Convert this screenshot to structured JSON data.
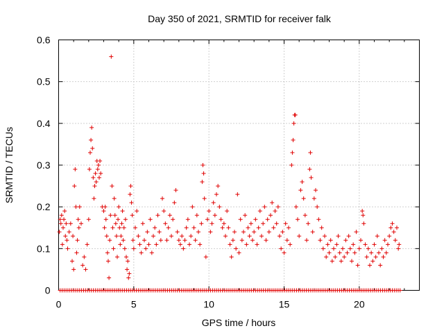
{
  "chart_data": {
    "type": "scatter",
    "title": "Day 350 of 2021, SRMTID for receiver falk",
    "xlabel": "GPS time / hours",
    "ylabel": "SRMTID / TECUs",
    "xlim": [
      0,
      24
    ],
    "ylim": [
      0,
      0.6
    ],
    "x_ticks": [
      "0",
      "5",
      "10",
      "15",
      "20"
    ],
    "y_ticks": [
      "0",
      "0.1",
      "0.2",
      "0.3",
      "0.4",
      "0.5",
      "0.6"
    ],
    "grid": true,
    "marker": "plus",
    "color": "#e00000",
    "series": [
      {
        "name": "SRMTID",
        "points": [
          [
            0.05,
            0.14
          ],
          [
            0.1,
            0.17
          ],
          [
            0.15,
            0.16
          ],
          [
            0.2,
            0.18
          ],
          [
            0.25,
            0.11
          ],
          [
            0.3,
            0.15
          ],
          [
            0.35,
            0.17
          ],
          [
            0.4,
            0.19
          ],
          [
            0.45,
            0.13
          ],
          [
            0.5,
            0.16
          ],
          [
            0.55,
            0.12
          ],
          [
            0.6,
            0.1
          ],
          [
            0.7,
            0.14
          ],
          [
            0.8,
            0.16
          ],
          [
            0.9,
            0.07
          ],
          [
            0.95,
            0.13
          ],
          [
            1.0,
            0.05
          ],
          [
            1.05,
            0.25
          ],
          [
            1.1,
            0.29
          ],
          [
            1.15,
            0.2
          ],
          [
            1.2,
            0.09
          ],
          [
            1.25,
            0.12
          ],
          [
            1.3,
            0.17
          ],
          [
            1.35,
            0.15
          ],
          [
            1.4,
            0.2
          ],
          [
            1.5,
            0.16
          ],
          [
            1.6,
            0.06
          ],
          [
            1.7,
            0.08
          ],
          [
            1.8,
            0.05
          ],
          [
            1.9,
            0.11
          ],
          [
            2.0,
            0.17
          ],
          [
            2.05,
            0.29
          ],
          [
            2.1,
            0.33
          ],
          [
            2.15,
            0.36
          ],
          [
            2.2,
            0.39
          ],
          [
            2.25,
            0.34
          ],
          [
            2.3,
            0.27
          ],
          [
            2.35,
            0.22
          ],
          [
            2.4,
            0.25
          ],
          [
            2.45,
            0.28
          ],
          [
            2.5,
            0.26
          ],
          [
            2.55,
            0.31
          ],
          [
            2.6,
            0.29
          ],
          [
            2.65,
            0.3
          ],
          [
            2.7,
            0.27
          ],
          [
            2.75,
            0.31
          ],
          [
            2.8,
            0.28
          ],
          [
            2.9,
            0.2
          ],
          [
            3.0,
            0.19
          ],
          [
            3.05,
            0.15
          ],
          [
            3.1,
            0.2
          ],
          [
            3.15,
            0.17
          ],
          [
            3.2,
            0.13
          ],
          [
            3.25,
            0.09
          ],
          [
            3.3,
            0.07
          ],
          [
            3.35,
            0.03
          ],
          [
            3.4,
            0.12
          ],
          [
            3.45,
            0.18
          ],
          [
            3.5,
            0.56
          ],
          [
            3.55,
            0.25
          ],
          [
            3.6,
            0.15
          ],
          [
            3.65,
            0.1
          ],
          [
            3.7,
            0.22
          ],
          [
            3.75,
            0.18
          ],
          [
            3.8,
            0.16
          ],
          [
            3.85,
            0.13
          ],
          [
            3.9,
            0.08
          ],
          [
            3.95,
            0.17
          ],
          [
            4.0,
            0.2
          ],
          [
            4.05,
            0.15
          ],
          [
            4.1,
            0.11
          ],
          [
            4.15,
            0.13
          ],
          [
            4.2,
            0.16
          ],
          [
            4.25,
            0.19
          ],
          [
            4.3,
            0.12
          ],
          [
            4.35,
            0.15
          ],
          [
            4.4,
            0.1
          ],
          [
            4.45,
            0.17
          ],
          [
            4.5,
            0.08
          ],
          [
            4.55,
            0.05
          ],
          [
            4.6,
            0.07
          ],
          [
            4.65,
            0.03
          ],
          [
            4.7,
            0.04
          ],
          [
            4.75,
            0.23
          ],
          [
            4.8,
            0.25
          ],
          [
            4.85,
            0.21
          ],
          [
            4.9,
            0.18
          ],
          [
            4.95,
            0.12
          ],
          [
            5.0,
            0.1
          ],
          [
            5.1,
            0.15
          ],
          [
            5.2,
            0.19
          ],
          [
            5.3,
            0.13
          ],
          [
            5.4,
            0.11
          ],
          [
            5.5,
            0.09
          ],
          [
            5.6,
            0.16
          ],
          [
            5.7,
            0.12
          ],
          [
            5.8,
            0.1
          ],
          [
            5.9,
            0.14
          ],
          [
            6.0,
            0.11
          ],
          [
            6.1,
            0.17
          ],
          [
            6.2,
            0.09
          ],
          [
            6.3,
            0.13
          ],
          [
            6.4,
            0.15
          ],
          [
            6.5,
            0.11
          ],
          [
            6.6,
            0.18
          ],
          [
            6.7,
            0.14
          ],
          [
            6.8,
            0.12
          ],
          [
            6.9,
            0.22
          ],
          [
            7.0,
            0.19
          ],
          [
            7.1,
            0.16
          ],
          [
            7.2,
            0.12
          ],
          [
            7.3,
            0.15
          ],
          [
            7.4,
            0.18
          ],
          [
            7.5,
            0.13
          ],
          [
            7.6,
            0.17
          ],
          [
            7.7,
            0.21
          ],
          [
            7.8,
            0.24
          ],
          [
            7.9,
            0.14
          ],
          [
            8.0,
            0.12
          ],
          [
            8.1,
            0.11
          ],
          [
            8.2,
            0.13
          ],
          [
            8.3,
            0.1
          ],
          [
            8.4,
            0.12
          ],
          [
            8.5,
            0.15
          ],
          [
            8.6,
            0.17
          ],
          [
            8.7,
            0.11
          ],
          [
            8.8,
            0.13
          ],
          [
            8.9,
            0.2
          ],
          [
            9.0,
            0.15
          ],
          [
            9.1,
            0.12
          ],
          [
            9.2,
            0.18
          ],
          [
            9.3,
            0.14
          ],
          [
            9.4,
            0.11
          ],
          [
            9.5,
            0.16
          ],
          [
            9.55,
            0.26
          ],
          [
            9.6,
            0.3
          ],
          [
            9.65,
            0.28
          ],
          [
            9.7,
            0.22
          ],
          [
            9.8,
            0.08
          ],
          [
            9.9,
            0.17
          ],
          [
            10.0,
            0.19
          ],
          [
            10.1,
            0.14
          ],
          [
            10.2,
            0.16
          ],
          [
            10.3,
            0.21
          ],
          [
            10.4,
            0.18
          ],
          [
            10.5,
            0.23
          ],
          [
            10.6,
            0.25
          ],
          [
            10.7,
            0.2
          ],
          [
            10.8,
            0.17
          ],
          [
            10.9,
            0.15
          ],
          [
            11.0,
            0.16
          ],
          [
            11.1,
            0.13
          ],
          [
            11.2,
            0.19
          ],
          [
            11.3,
            0.15
          ],
          [
            11.4,
            0.11
          ],
          [
            11.5,
            0.08
          ],
          [
            11.6,
            0.12
          ],
          [
            11.7,
            0.14
          ],
          [
            11.8,
            0.1
          ],
          [
            11.9,
            0.23
          ],
          [
            12.0,
            0.09
          ],
          [
            12.1,
            0.17
          ],
          [
            12.2,
            0.12
          ],
          [
            12.3,
            0.14
          ],
          [
            12.4,
            0.18
          ],
          [
            12.5,
            0.11
          ],
          [
            12.6,
            0.15
          ],
          [
            12.7,
            0.13
          ],
          [
            12.8,
            0.16
          ],
          [
            12.9,
            0.12
          ],
          [
            13.0,
            0.14
          ],
          [
            13.1,
            0.17
          ],
          [
            13.2,
            0.11
          ],
          [
            13.3,
            0.15
          ],
          [
            13.4,
            0.19
          ],
          [
            13.5,
            0.13
          ],
          [
            13.6,
            0.16
          ],
          [
            13.7,
            0.2
          ],
          [
            13.8,
            0.12
          ],
          [
            13.9,
            0.17
          ],
          [
            14.0,
            0.14
          ],
          [
            14.1,
            0.18
          ],
          [
            14.2,
            0.21
          ],
          [
            14.3,
            0.15
          ],
          [
            14.4,
            0.19
          ],
          [
            14.5,
            0.16
          ],
          [
            14.6,
            0.2
          ],
          [
            14.7,
            0.13
          ],
          [
            14.8,
            0.1
          ],
          [
            14.9,
            0.14
          ],
          [
            15.0,
            0.09
          ],
          [
            15.1,
            0.16
          ],
          [
            15.2,
            0.12
          ],
          [
            15.3,
            0.15
          ],
          [
            15.4,
            0.11
          ],
          [
            15.5,
            0.3
          ],
          [
            15.55,
            0.33
          ],
          [
            15.6,
            0.36
          ],
          [
            15.65,
            0.4
          ],
          [
            15.7,
            0.42
          ],
          [
            15.75,
            0.42
          ],
          [
            15.8,
            0.2
          ],
          [
            15.9,
            0.17
          ],
          [
            16.0,
            0.13
          ],
          [
            16.1,
            0.24
          ],
          [
            16.2,
            0.26
          ],
          [
            16.3,
            0.22
          ],
          [
            16.4,
            0.18
          ],
          [
            16.5,
            0.12
          ],
          [
            16.6,
            0.16
          ],
          [
            16.7,
            0.29
          ],
          [
            16.75,
            0.33
          ],
          [
            16.8,
            0.27
          ],
          [
            16.9,
            0.14
          ],
          [
            17.0,
            0.22
          ],
          [
            17.1,
            0.24
          ],
          [
            17.2,
            0.2
          ],
          [
            17.3,
            0.17
          ],
          [
            17.4,
            0.12
          ],
          [
            17.5,
            0.15
          ],
          [
            17.6,
            0.1
          ],
          [
            17.7,
            0.13
          ],
          [
            17.8,
            0.08
          ],
          [
            17.9,
            0.11
          ],
          [
            18.0,
            0.09
          ],
          [
            18.1,
            0.12
          ],
          [
            18.2,
            0.07
          ],
          [
            18.3,
            0.1
          ],
          [
            18.4,
            0.08
          ],
          [
            18.5,
            0.11
          ],
          [
            18.6,
            0.13
          ],
          [
            18.7,
            0.09
          ],
          [
            18.8,
            0.07
          ],
          [
            18.9,
            0.1
          ],
          [
            19.0,
            0.08
          ],
          [
            19.1,
            0.12
          ],
          [
            19.2,
            0.09
          ],
          [
            19.3,
            0.13
          ],
          [
            19.4,
            0.1
          ],
          [
            19.5,
            0.07
          ],
          [
            19.6,
            0.11
          ],
          [
            19.7,
            0.09
          ],
          [
            19.8,
            0.14
          ],
          [
            19.9,
            0.06
          ],
          [
            20.0,
            0.1
          ],
          [
            20.1,
            0.12
          ],
          [
            20.2,
            0.19
          ],
          [
            20.25,
            0.18
          ],
          [
            20.3,
            0.16
          ],
          [
            20.4,
            0.11
          ],
          [
            20.5,
            0.08
          ],
          [
            20.6,
            0.1
          ],
          [
            20.7,
            0.06
          ],
          [
            20.8,
            0.09
          ],
          [
            20.9,
            0.07
          ],
          [
            21.0,
            0.11
          ],
          [
            21.1,
            0.08
          ],
          [
            21.2,
            0.13
          ],
          [
            21.3,
            0.09
          ],
          [
            21.4,
            0.06
          ],
          [
            21.5,
            0.1
          ],
          [
            21.6,
            0.08
          ],
          [
            21.7,
            0.12
          ],
          [
            21.8,
            0.09
          ],
          [
            21.9,
            0.11
          ],
          [
            22.0,
            0.13
          ],
          [
            22.1,
            0.15
          ],
          [
            22.2,
            0.16
          ],
          [
            22.3,
            0.14
          ],
          [
            22.4,
            0.12
          ],
          [
            22.5,
            0.15
          ],
          [
            22.6,
            0.1
          ],
          [
            22.65,
            0.11
          ]
        ],
        "zero_points": {
          "start": 0.1,
          "end": 22.8,
          "step": 0.13
        }
      }
    ]
  }
}
